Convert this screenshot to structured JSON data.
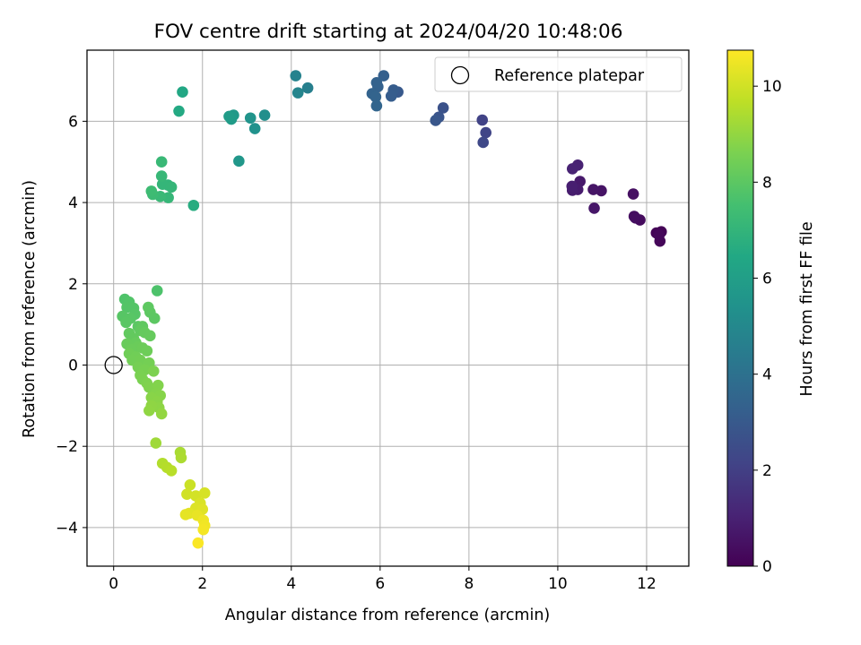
{
  "chart_data": {
    "type": "scatter",
    "title": "FOV centre drift starting at 2024/04/20 10:48:06",
    "xlabel": "Angular distance from reference (arcmin)",
    "ylabel": "Rotation from reference (arcmin)",
    "xlim": [
      -0.6,
      12.95
    ],
    "ylim": [
      -4.95,
      7.75
    ],
    "x_ticks": [
      0,
      2,
      4,
      6,
      8,
      10,
      12
    ],
    "y_ticks": [
      -4,
      -2,
      0,
      2,
      4,
      6
    ],
    "x_tick_labels": [
      "0",
      "2",
      "4",
      "6",
      "8",
      "10",
      "12"
    ],
    "y_tick_labels": [
      "−4",
      "−2",
      "0",
      "2",
      "4",
      "6"
    ],
    "grid": true,
    "legend": {
      "placement": "top-right",
      "entries": [
        "Reference platepar"
      ]
    },
    "reference_point": {
      "x": 0,
      "y": 0
    },
    "colorbar": {
      "label": "Hours from first FF file",
      "colormap": "viridis",
      "range": [
        0,
        10.75
      ],
      "ticks": [
        0,
        2,
        4,
        6,
        8,
        10
      ],
      "tick_labels": [
        "0",
        "2",
        "4",
        "6",
        "8",
        "10"
      ]
    },
    "points": [
      [
        12.33,
        3.28,
        0.05
      ],
      [
        12.22,
        3.25,
        0.1
      ],
      [
        12.3,
        3.05,
        0.15
      ],
      [
        12.28,
        3.2,
        0.2
      ],
      [
        11.85,
        3.57,
        0.3
      ],
      [
        11.75,
        3.62,
        0.35
      ],
      [
        11.72,
        3.66,
        0.4
      ],
      [
        11.7,
        4.21,
        0.45
      ],
      [
        10.98,
        4.29,
        0.55
      ],
      [
        10.8,
        4.32,
        0.6
      ],
      [
        10.82,
        3.86,
        0.65
      ],
      [
        10.5,
        4.52,
        0.75
      ],
      [
        10.45,
        4.32,
        0.8
      ],
      [
        10.33,
        4.3,
        0.85
      ],
      [
        10.32,
        4.4,
        0.9
      ],
      [
        10.45,
        4.92,
        1.0
      ],
      [
        10.33,
        4.83,
        1.05
      ],
      [
        8.3,
        6.03,
        2.1
      ],
      [
        8.38,
        5.72,
        2.2
      ],
      [
        8.32,
        5.48,
        2.3
      ],
      [
        7.42,
        6.33,
        2.7
      ],
      [
        7.32,
        6.1,
        2.8
      ],
      [
        7.25,
        6.02,
        2.9
      ],
      [
        6.4,
        6.72,
        3.0
      ],
      [
        6.3,
        6.77,
        3.1
      ],
      [
        6.25,
        6.62,
        3.15
      ],
      [
        6.08,
        7.12,
        3.25
      ],
      [
        5.95,
        6.85,
        3.3
      ],
      [
        5.92,
        6.95,
        3.35
      ],
      [
        5.82,
        6.68,
        3.4
      ],
      [
        5.9,
        6.6,
        3.45
      ],
      [
        5.92,
        6.38,
        3.5
      ],
      [
        4.37,
        6.82,
        4.6
      ],
      [
        4.1,
        7.12,
        4.75
      ],
      [
        4.15,
        6.7,
        4.85
      ],
      [
        3.4,
        6.15,
        5.3
      ],
      [
        3.18,
        5.82,
        5.4
      ],
      [
        3.08,
        6.08,
        5.5
      ],
      [
        2.82,
        5.02,
        5.65
      ],
      [
        2.7,
        6.15,
        5.75
      ],
      [
        2.65,
        6.05,
        5.85
      ],
      [
        2.6,
        6.12,
        5.9
      ],
      [
        1.55,
        6.72,
        6.4
      ],
      [
        1.47,
        6.25,
        6.5
      ],
      [
        1.8,
        3.93,
        6.65
      ],
      [
        1.22,
        4.43,
        7.0
      ],
      [
        1.1,
        4.45,
        7.05
      ],
      [
        1.3,
        4.38,
        7.08
      ],
      [
        1.23,
        4.12,
        7.1
      ],
      [
        1.08,
        4.65,
        7.15
      ],
      [
        1.08,
        5.0,
        7.18
      ],
      [
        1.05,
        4.15,
        7.22
      ],
      [
        0.88,
        4.2,
        7.3
      ],
      [
        0.85,
        4.28,
        7.35
      ],
      [
        0.98,
        1.83,
        7.7
      ],
      [
        0.25,
        1.62,
        7.75
      ],
      [
        0.35,
        1.55,
        7.8
      ],
      [
        0.3,
        1.42,
        7.82
      ],
      [
        0.45,
        1.4,
        7.85
      ],
      [
        0.48,
        1.25,
        7.88
      ],
      [
        0.2,
        1.2,
        7.9
      ],
      [
        0.38,
        1.15,
        7.92
      ],
      [
        0.28,
        1.05,
        7.95
      ],
      [
        0.55,
        0.95,
        7.98
      ],
      [
        0.92,
        1.15,
        8.0
      ],
      [
        0.82,
        1.3,
        8.02
      ],
      [
        0.78,
        1.42,
        8.05
      ],
      [
        0.65,
        0.95,
        8.08
      ],
      [
        0.6,
        0.85,
        8.1
      ],
      [
        0.35,
        0.78,
        8.12
      ],
      [
        0.45,
        0.65,
        8.15
      ],
      [
        0.7,
        0.8,
        8.18
      ],
      [
        0.82,
        0.72,
        8.2
      ],
      [
        0.5,
        0.55,
        8.22
      ],
      [
        0.3,
        0.52,
        8.25
      ],
      [
        0.55,
        0.45,
        8.28
      ],
      [
        0.4,
        0.38,
        8.3
      ],
      [
        0.65,
        0.42,
        8.32
      ],
      [
        0.75,
        0.35,
        8.35
      ],
      [
        0.35,
        0.28,
        8.38
      ],
      [
        0.5,
        0.2,
        8.4
      ],
      [
        0.42,
        0.12,
        8.42
      ],
      [
        0.6,
        0.12,
        8.45
      ],
      [
        0.8,
        0.05,
        8.48
      ],
      [
        0.55,
        -0.05,
        8.5
      ],
      [
        0.7,
        -0.12,
        8.55
      ],
      [
        0.6,
        -0.25,
        8.58
      ],
      [
        0.65,
        -0.35,
        8.6
      ],
      [
        0.9,
        -0.15,
        8.63
      ],
      [
        0.75,
        -0.45,
        8.65
      ],
      [
        0.8,
        -0.55,
        8.68
      ],
      [
        0.9,
        -0.62,
        8.7
      ],
      [
        1.0,
        -0.5,
        8.73
      ],
      [
        0.95,
        -0.7,
        8.76
      ],
      [
        1.05,
        -0.75,
        8.8
      ],
      [
        0.85,
        -0.8,
        8.83
      ],
      [
        0.98,
        -0.9,
        8.86
      ],
      [
        1.02,
        -1.05,
        8.9
      ],
      [
        0.85,
        -1.0,
        8.93
      ],
      [
        0.8,
        -1.12,
        8.96
      ],
      [
        1.08,
        -1.2,
        9.0
      ],
      [
        0.95,
        -1.92,
        9.2
      ],
      [
        1.5,
        -2.15,
        9.35
      ],
      [
        1.52,
        -2.28,
        9.4
      ],
      [
        1.1,
        -2.42,
        9.5
      ],
      [
        1.2,
        -2.52,
        9.55
      ],
      [
        1.3,
        -2.6,
        9.6
      ],
      [
        1.72,
        -2.95,
        9.9
      ],
      [
        1.65,
        -3.18,
        10.0
      ],
      [
        1.85,
        -3.22,
        10.05
      ],
      [
        2.05,
        -3.15,
        10.1
      ],
      [
        1.95,
        -3.4,
        10.15
      ],
      [
        1.85,
        -3.52,
        10.2
      ],
      [
        2.0,
        -3.55,
        10.25
      ],
      [
        1.7,
        -3.65,
        10.3
      ],
      [
        1.62,
        -3.68,
        10.35
      ],
      [
        1.88,
        -3.7,
        10.4
      ],
      [
        2.02,
        -3.82,
        10.5
      ],
      [
        2.05,
        -3.95,
        10.55
      ],
      [
        2.02,
        -4.05,
        10.6
      ],
      [
        1.9,
        -4.38,
        10.7
      ]
    ]
  }
}
